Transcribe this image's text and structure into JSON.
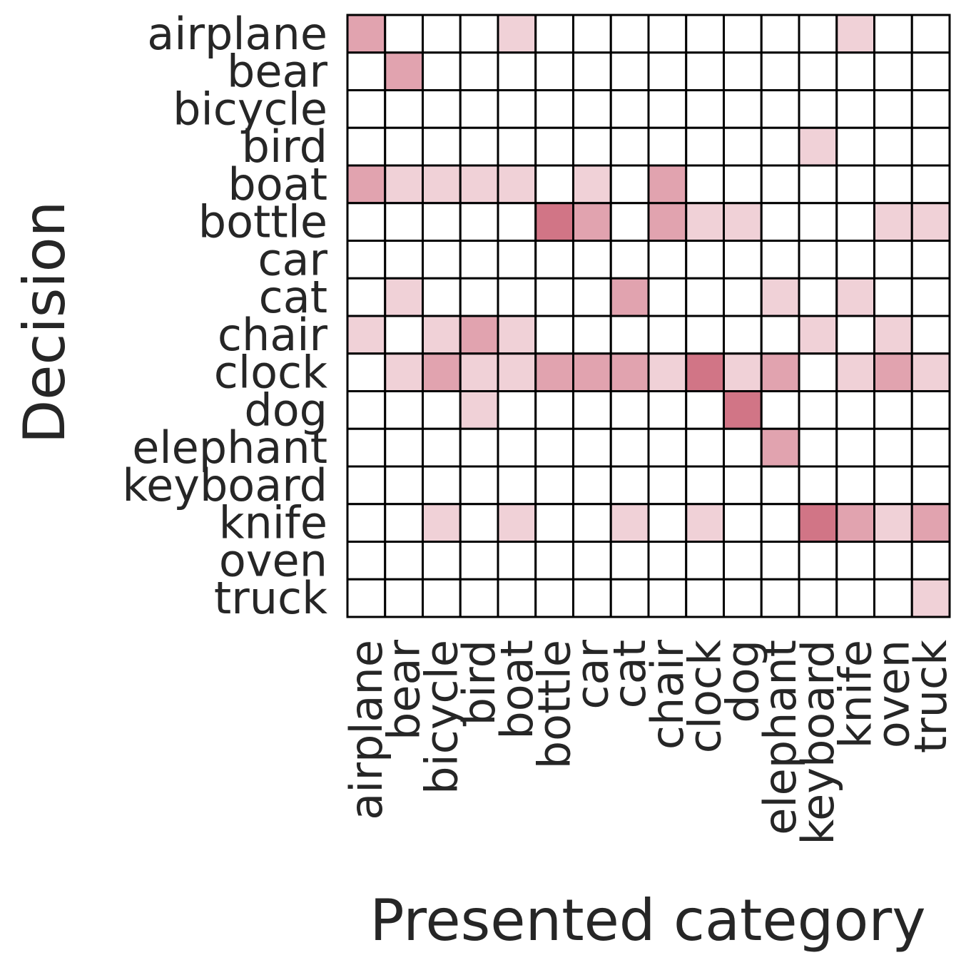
{
  "chart_data": {
    "type": "heatmap",
    "xlabel": "Presented category",
    "ylabel": "Decision",
    "x_categories": [
      "airplane",
      "bear",
      "bicycle",
      "bird",
      "boat",
      "bottle",
      "car",
      "cat",
      "chair",
      "clock",
      "dog",
      "elephant",
      "keyboard",
      "knife",
      "oven",
      "truck"
    ],
    "y_categories": [
      "airplane",
      "bear",
      "bicycle",
      "bird",
      "boat",
      "bottle",
      "car",
      "cat",
      "chair",
      "clock",
      "dog",
      "elephant",
      "keyboard",
      "knife",
      "oven",
      "truck"
    ],
    "value_range": [
      0,
      1
    ],
    "grid": true,
    "colors": {
      "low": "#ffffff",
      "high": "#c2475e",
      "gridline": "#000000"
    },
    "values": [
      [
        0.5,
        0,
        0,
        0,
        0.25,
        0,
        0,
        0,
        0,
        0,
        0,
        0,
        0,
        0.25,
        0,
        0
      ],
      [
        0,
        0.5,
        0,
        0,
        0,
        0,
        0,
        0,
        0,
        0,
        0,
        0,
        0,
        0,
        0,
        0
      ],
      [
        0,
        0,
        0,
        0,
        0,
        0,
        0,
        0,
        0,
        0,
        0,
        0,
        0,
        0,
        0,
        0
      ],
      [
        0,
        0,
        0,
        0,
        0,
        0,
        0,
        0,
        0,
        0,
        0,
        0,
        0.25,
        0,
        0,
        0
      ],
      [
        0.5,
        0.25,
        0.25,
        0.25,
        0.25,
        0,
        0.25,
        0,
        0.5,
        0,
        0,
        0,
        0,
        0,
        0,
        0
      ],
      [
        0,
        0,
        0,
        0,
        0,
        0.75,
        0.5,
        0,
        0.5,
        0.25,
        0.25,
        0,
        0,
        0,
        0.25,
        0.25
      ],
      [
        0,
        0,
        0,
        0,
        0,
        0,
        0,
        0,
        0,
        0,
        0,
        0,
        0,
        0,
        0,
        0
      ],
      [
        0,
        0.25,
        0,
        0,
        0,
        0,
        0,
        0.5,
        0,
        0,
        0,
        0.25,
        0,
        0.25,
        0,
        0
      ],
      [
        0.25,
        0,
        0.25,
        0.5,
        0.25,
        0,
        0,
        0,
        0,
        0,
        0,
        0,
        0.25,
        0,
        0.25,
        0
      ],
      [
        0,
        0.25,
        0.5,
        0.25,
        0.25,
        0.5,
        0.5,
        0.5,
        0.25,
        0.75,
        0.25,
        0.5,
        0,
        0.25,
        0.5,
        0.25
      ],
      [
        0,
        0,
        0,
        0.25,
        0,
        0,
        0,
        0,
        0,
        0,
        0.75,
        0,
        0,
        0,
        0,
        0
      ],
      [
        0,
        0,
        0,
        0,
        0,
        0,
        0,
        0,
        0,
        0,
        0,
        0.5,
        0,
        0,
        0,
        0
      ],
      [
        0,
        0,
        0,
        0,
        0,
        0,
        0,
        0,
        0,
        0,
        0,
        0,
        0,
        0,
        0,
        0
      ],
      [
        0,
        0,
        0.25,
        0,
        0.25,
        0,
        0,
        0.25,
        0,
        0.25,
        0,
        0,
        0.75,
        0.5,
        0.25,
        0.5
      ],
      [
        0,
        0,
        0,
        0,
        0,
        0,
        0,
        0,
        0,
        0,
        0,
        0,
        0,
        0,
        0,
        0
      ],
      [
        0,
        0,
        0,
        0,
        0,
        0,
        0,
        0,
        0,
        0,
        0,
        0,
        0,
        0,
        0,
        0.25
      ]
    ]
  }
}
